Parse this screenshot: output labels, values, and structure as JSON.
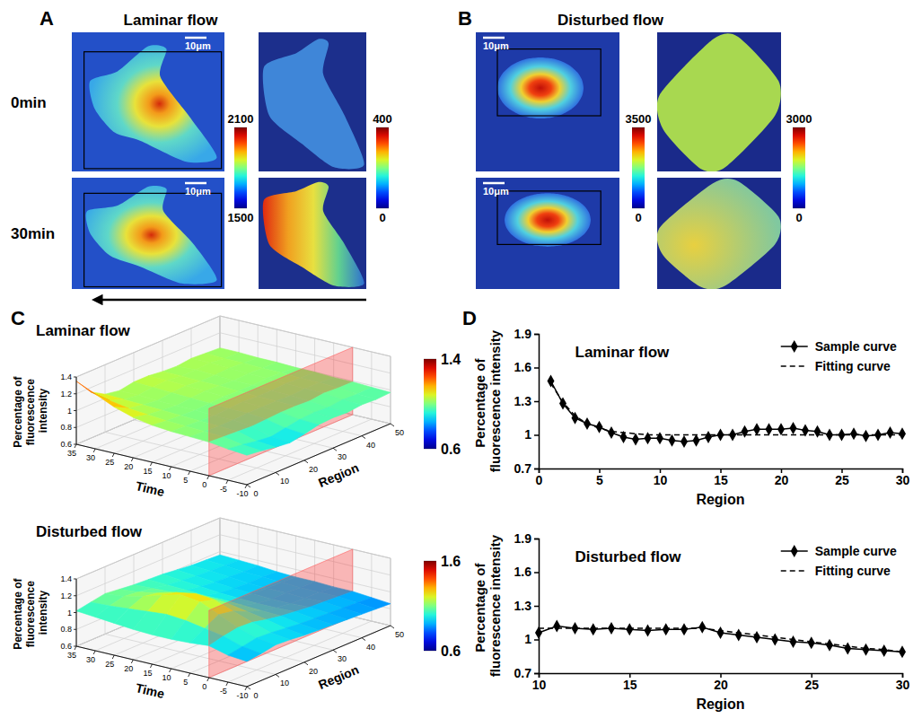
{
  "chart_data": [
    {
      "type": "image",
      "panel": "A",
      "title": "Laminar flow",
      "row_labels": [
        "0min",
        "30min"
      ],
      "scale_bar": "10μm",
      "colorbars": [
        {
          "range": [
            1500,
            2100
          ],
          "ticks": [
            1500,
            2100
          ]
        },
        {
          "range": [
            0,
            400
          ],
          "ticks": [
            0,
            400
          ]
        }
      ]
    },
    {
      "type": "image",
      "panel": "B",
      "title": "Disturbed flow",
      "scale_bar": "10μm",
      "colorbars": [
        {
          "range": [
            0,
            3500
          ],
          "ticks": [
            0,
            3500
          ]
        },
        {
          "range": [
            0,
            3000
          ],
          "ticks": [
            0,
            3000
          ]
        }
      ]
    },
    {
      "type": "surface",
      "panel": "C",
      "title": "Laminar flow",
      "xlabel": "Time",
      "ylabel": "Region",
      "zlabel": "Percentage of fluorescence intensity",
      "x": [
        35,
        30,
        25,
        20,
        15,
        10,
        5,
        0,
        -5,
        -10
      ],
      "y": [
        0,
        5,
        10,
        15,
        20,
        25,
        30,
        35,
        40,
        45,
        50
      ],
      "z": [
        [
          1.35,
          1.15,
          1.05,
          1.02,
          1.05,
          1.05,
          1.03,
          1.02,
          1.04,
          1.03,
          1.02
        ],
        [
          1.25,
          1.1,
          1.04,
          1.02,
          1.04,
          1.05,
          1.03,
          1.03,
          1.04,
          1.02,
          1.02
        ],
        [
          1.15,
          1.06,
          1.03,
          1.01,
          1.03,
          1.04,
          1.02,
          1.02,
          1.03,
          1.02,
          1.01
        ],
        [
          1.08,
          1.04,
          1.02,
          1.0,
          1.02,
          1.03,
          1.02,
          1.01,
          1.02,
          1.01,
          1.01
        ],
        [
          1.04,
          1.02,
          1.01,
          1.0,
          1.01,
          1.02,
          1.01,
          1.01,
          1.02,
          1.01,
          1.0
        ],
        [
          1.02,
          1.01,
          1.0,
          0.99,
          1.0,
          1.01,
          1.0,
          1.0,
          1.01,
          1.0,
          1.0
        ],
        [
          1.01,
          1.0,
          0.99,
          0.99,
          1.0,
          1.0,
          1.0,
          0.99,
          1.0,
          1.0,
          0.99
        ],
        [
          1.0,
          0.99,
          0.98,
          0.97,
          0.98,
          0.99,
          0.99,
          0.98,
          1.0,
          0.99,
          0.99
        ],
        [
          0.97,
          0.95,
          0.92,
          0.9,
          0.93,
          0.96,
          0.97,
          0.96,
          0.98,
          0.97,
          0.98
        ],
        [
          0.95,
          0.93,
          0.9,
          0.88,
          0.91,
          0.95,
          0.96,
          0.95,
          0.97,
          0.96,
          0.97
        ]
      ],
      "xlim": [
        -10,
        35
      ],
      "xticks": [
        35,
        30,
        25,
        20,
        15,
        10,
        5,
        0,
        -5,
        -10
      ],
      "ylim": [
        0,
        50
      ],
      "yticks": [
        0,
        10,
        20,
        30,
        40,
        50
      ],
      "zlim": [
        0.6,
        1.4
      ],
      "zticks": [
        0.6,
        0.8,
        1,
        1.2,
        1.4
      ],
      "colorbar": {
        "range": [
          0.6,
          1.4
        ],
        "ticks": [
          0.6,
          1.4
        ]
      },
      "plane_time": 0
    },
    {
      "type": "surface",
      "title": "Disturbed flow",
      "xlabel": "Time",
      "ylabel": "Region",
      "zlabel": "Percentage of fluorescence intensity",
      "x": [
        35,
        30,
        25,
        20,
        15,
        10,
        5,
        0,
        -5,
        -10
      ],
      "y": [
        0,
        5,
        10,
        15,
        20,
        25,
        30,
        35,
        40,
        45,
        50
      ],
      "z": [
        [
          1.02,
          1.05,
          1.08,
          1.06,
          1.04,
          1.03,
          1.02,
          1.0,
          0.98,
          0.97,
          0.96
        ],
        [
          1.0,
          1.06,
          1.1,
          1.08,
          1.05,
          1.02,
          1.0,
          0.98,
          0.97,
          0.96,
          0.95
        ],
        [
          0.98,
          1.08,
          1.15,
          1.12,
          1.06,
          1.01,
          0.98,
          0.96,
          0.95,
          0.94,
          0.94
        ],
        [
          0.96,
          1.1,
          1.22,
          1.18,
          1.08,
          1.0,
          0.96,
          0.94,
          0.93,
          0.93,
          0.92
        ],
        [
          0.95,
          1.12,
          1.28,
          1.22,
          1.1,
          1.0,
          0.95,
          0.93,
          0.92,
          0.92,
          0.91
        ],
        [
          0.95,
          1.1,
          1.25,
          1.2,
          1.08,
          0.99,
          0.94,
          0.92,
          0.92,
          0.91,
          0.91
        ],
        [
          0.96,
          1.06,
          1.15,
          1.12,
          1.04,
          0.98,
          0.94,
          0.92,
          0.91,
          0.91,
          0.9
        ],
        [
          0.98,
          1.02,
          1.05,
          1.04,
          1.0,
          0.97,
          0.95,
          0.93,
          0.92,
          0.91,
          0.9
        ],
        [
          0.92,
          0.95,
          0.98,
          0.97,
          0.95,
          0.93,
          0.92,
          0.91,
          0.9,
          0.89,
          0.88
        ],
        [
          0.9,
          0.92,
          0.95,
          0.94,
          0.92,
          0.91,
          0.9,
          0.89,
          0.88,
          0.87,
          0.86
        ]
      ],
      "xlim": [
        -10,
        35
      ],
      "xticks": [
        35,
        30,
        25,
        20,
        15,
        10,
        5,
        0,
        -5,
        -10
      ],
      "ylim": [
        0,
        50
      ],
      "yticks": [
        0,
        10,
        20,
        30,
        40,
        50
      ],
      "zlim": [
        0.6,
        1.4
      ],
      "zticks": [
        0.6,
        0.8,
        1,
        1.2,
        1.4
      ],
      "colorbar": {
        "range": [
          0.6,
          1.6
        ],
        "ticks": [
          0.6,
          1.6
        ]
      },
      "plane_time": 0
    },
    {
      "type": "line",
      "panel": "D",
      "title": "Laminar flow",
      "xlabel": "Region",
      "ylabel": "Percentage of fluorescence intensity",
      "x": [
        1,
        2,
        3,
        4,
        5,
        6,
        7,
        8,
        9,
        10,
        11,
        12,
        13,
        14,
        15,
        16,
        17,
        18,
        19,
        20,
        21,
        22,
        23,
        24,
        25,
        26,
        27,
        28,
        29,
        30
      ],
      "series": [
        {
          "name": "Sample curve",
          "color": "#000000",
          "marker": "diamond",
          "line_style": "solid",
          "values": [
            1.48,
            1.28,
            1.15,
            1.1,
            1.07,
            1.02,
            0.98,
            0.96,
            0.97,
            0.97,
            0.95,
            0.94,
            0.95,
            0.98,
            1.0,
            1.0,
            1.03,
            1.05,
            1.05,
            1.05,
            1.06,
            1.04,
            1.03,
            1.0,
            1.0,
            1.01,
            0.99,
            1.0,
            1.02,
            1.01
          ]
        },
        {
          "name": "Fitting curve",
          "color": "#000000",
          "marker": "none",
          "line_style": "dashed",
          "values": [
            1.46,
            1.29,
            1.17,
            1.1,
            1.06,
            1.03,
            1.02,
            1.01,
            1,
            1,
            1,
            1,
            1,
            1,
            1,
            1,
            1,
            1,
            1,
            1,
            1,
            1,
            1,
            1,
            1,
            1,
            1,
            1,
            1,
            1
          ]
        }
      ],
      "xlim": [
        0,
        30
      ],
      "xticks": [
        0,
        5,
        10,
        15,
        20,
        25,
        30
      ],
      "ylim": [
        0.7,
        1.9
      ],
      "yticks": [
        0.7,
        1,
        1.3,
        1.6,
        1.9
      ],
      "legend": "top-right"
    },
    {
      "type": "line",
      "title": "Disturbed flow",
      "xlabel": "Region",
      "ylabel": "Percentage of fluorescence intensity",
      "x": [
        10,
        11,
        12,
        13,
        14,
        15,
        16,
        17,
        18,
        19,
        20,
        21,
        22,
        23,
        24,
        25,
        26,
        27,
        28,
        29,
        30
      ],
      "series": [
        {
          "name": "Sample curve",
          "color": "#000000",
          "marker": "diamond",
          "line_style": "solid",
          "values": [
            1.06,
            1.12,
            1.1,
            1.09,
            1.1,
            1.09,
            1.08,
            1.09,
            1.09,
            1.11,
            1.06,
            1.04,
            1.02,
            1.0,
            0.98,
            0.97,
            0.95,
            0.92,
            0.91,
            0.9,
            0.89
          ]
        },
        {
          "name": "Fitting curve",
          "color": "#000000",
          "marker": "none",
          "line_style": "dashed",
          "values": [
            1.1,
            1.1,
            1.1,
            1.1,
            1.1,
            1.1,
            1.1,
            1.1,
            1.1,
            1.1,
            1.08,
            1.06,
            1.04,
            1.02,
            1.0,
            0.98,
            0.96,
            0.94,
            0.92,
            0.91,
            0.89
          ]
        }
      ],
      "xlim": [
        10,
        30
      ],
      "xticks": [
        10,
        15,
        20,
        25,
        30
      ],
      "ylim": [
        0.7,
        1.9
      ],
      "yticks": [
        0.7,
        1,
        1.3,
        1.6,
        1.9
      ],
      "legend": "top-right"
    }
  ]
}
